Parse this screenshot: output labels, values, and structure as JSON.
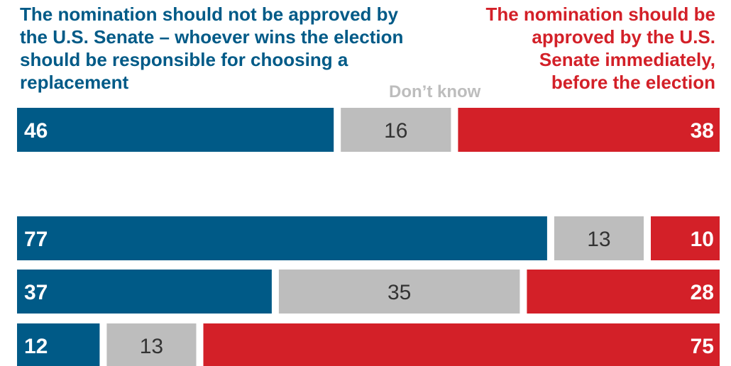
{
  "legend": {
    "not_approved": "The nomination should not be approved by the U.S. Senate – whoever wins the election should be responsible for choosing a replacement",
    "dont_know": "Don’t know",
    "approved": "The nomination should be approved by the U.S. Senate immediately, before the election"
  },
  "colors": {
    "not_approved": "#005a87",
    "dont_know": "#bdbdbd",
    "approved": "#d32028"
  },
  "chart_data": {
    "type": "bar",
    "orientation": "horizontal-stacked-100",
    "categories": [
      "",
      "",
      "",
      ""
    ],
    "series": [
      {
        "name": "The nomination should not be approved by the U.S. Senate – whoever wins the election should be responsible for choosing a replacement",
        "values": [
          46,
          77,
          37,
          12
        ]
      },
      {
        "name": "Don’t know",
        "values": [
          16,
          13,
          35,
          13
        ]
      },
      {
        "name": "The nomination should be approved by the U.S. Senate immediately, before the election",
        "values": [
          38,
          10,
          28,
          75
        ]
      }
    ],
    "xlim": [
      0,
      100
    ],
    "legend": "top"
  }
}
